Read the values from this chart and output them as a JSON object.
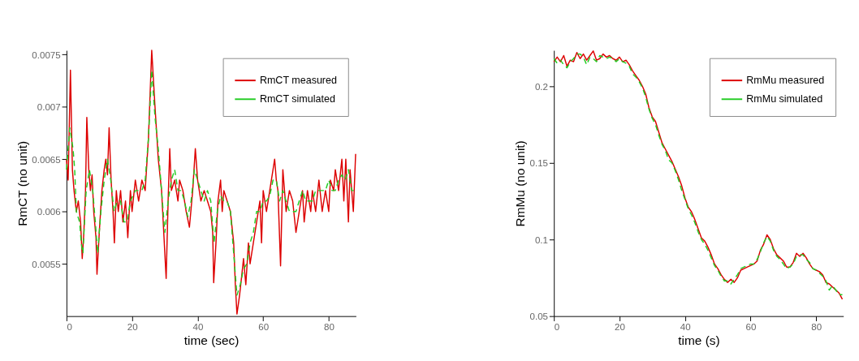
{
  "chart_data": [
    {
      "type": "line",
      "xlabel": "time (sec)",
      "ylabel": "RmCT (no unit)",
      "xlim": [
        0,
        88.3
      ],
      "ylim": [
        0.005,
        0.00754
      ],
      "xticks": [
        0,
        20,
        40,
        60,
        80
      ],
      "yticks": [
        0.0055,
        0.006,
        0.0065,
        0.007,
        0.0075
      ],
      "grid": false,
      "legend": "top right",
      "marker": "none",
      "series": [
        {
          "name": "RmCT measured",
          "color": "#dd0000",
          "line_style": "solid",
          "x": [
            0,
            0.5,
            1.2,
            1.8,
            2.3,
            3,
            3.6,
            4.3,
            4.8,
            5.3,
            5.8,
            6.2,
            6.8,
            7.3,
            7.8,
            8.3,
            9,
            9.3,
            10,
            10.8,
            11.5,
            12,
            12.5,
            13,
            13.6,
            14.2,
            14.6,
            15.2,
            15.8,
            16.5,
            17.2,
            18,
            18.7,
            19.5,
            20,
            21,
            22,
            23,
            24,
            25,
            26,
            27,
            28,
            29,
            29.5,
            30.4,
            31,
            31.5,
            32,
            33,
            34,
            34.5,
            35.5,
            36.5,
            37.5,
            38.5,
            39.3,
            40,
            41,
            42,
            43,
            44,
            44.6,
            44.9,
            45.6,
            46.2,
            47,
            47.5,
            48,
            49,
            50,
            51,
            51.5,
            52,
            52.8,
            53.5,
            54,
            54.7,
            55.5,
            56,
            57,
            58,
            59,
            59.5,
            60,
            61,
            62,
            63,
            63.5,
            64,
            64.5,
            65.3,
            66,
            67,
            68,
            69,
            70,
            71,
            72,
            72.5,
            73.5,
            74.5,
            75,
            76,
            77,
            78,
            79,
            80,
            80.5,
            81.5,
            82,
            83,
            84,
            84.6,
            85.2,
            86,
            86.5,
            87,
            87.5,
            88.2
          ],
          "values": [
            0.0065,
            0.0063,
            0.00735,
            0.0064,
            0.0062,
            0.006,
            0.0061,
            0.0059,
            0.00555,
            0.0058,
            0.0062,
            0.0069,
            0.0064,
            0.0062,
            0.00635,
            0.006,
            0.00575,
            0.0054,
            0.0058,
            0.0062,
            0.0064,
            0.0065,
            0.00635,
            0.0068,
            0.0063,
            0.006,
            0.0057,
            0.0062,
            0.006,
            0.0062,
            0.0059,
            0.0061,
            0.00575,
            0.0062,
            0.006,
            0.0063,
            0.0061,
            0.0063,
            0.0062,
            0.0067,
            0.00754,
            0.007,
            0.0065,
            0.0062,
            0.0059,
            0.00536,
            0.0061,
            0.0066,
            0.0062,
            0.0063,
            0.0061,
            0.0063,
            0.0062,
            0.006,
            0.00585,
            0.0062,
            0.0066,
            0.0063,
            0.0061,
            0.0062,
            0.0061,
            0.006,
            0.0058,
            0.00532,
            0.0057,
            0.0061,
            0.0063,
            0.006,
            0.0062,
            0.0061,
            0.006,
            0.0057,
            0.0053,
            0.00502,
            0.0052,
            0.0054,
            0.00555,
            0.0053,
            0.0057,
            0.0055,
            0.0057,
            0.0059,
            0.0061,
            0.0057,
            0.0062,
            0.006,
            0.0062,
            0.0064,
            0.0065,
            0.0063,
            0.0062,
            0.00548,
            0.0064,
            0.006,
            0.0062,
            0.0061,
            0.0058,
            0.006,
            0.0062,
            0.0059,
            0.0062,
            0.006,
            0.0062,
            0.006,
            0.0063,
            0.006,
            0.0062,
            0.006,
            0.0063,
            0.0062,
            0.0064,
            0.0062,
            0.0065,
            0.0061,
            0.0065,
            0.0059,
            0.0064,
            0.0062,
            0.006,
            0.00655
          ]
        },
        {
          "name": "RmCT simulated",
          "color": "#22cc22",
          "line_style": "dashed",
          "x": [
            0,
            1,
            2,
            2.5,
            3,
            4,
            4.5,
            5,
            6,
            7,
            8,
            8.8,
            9.5,
            10.5,
            11.5,
            12.5,
            13.5,
            14.5,
            15.5,
            16.5,
            17.5,
            18.5,
            19.5,
            21,
            22,
            23,
            24,
            25,
            26,
            27,
            28,
            29,
            30,
            31,
            32,
            33,
            34,
            35,
            36,
            37,
            38,
            39,
            40,
            41,
            42,
            43,
            44,
            45,
            46,
            47,
            48,
            49,
            50,
            51,
            52,
            53,
            54,
            55,
            56,
            57,
            58,
            59,
            60,
            61,
            62,
            63,
            64,
            65,
            66,
            67,
            68,
            69,
            70,
            71,
            72,
            73,
            74,
            75,
            76,
            77,
            78,
            79,
            80,
            81,
            82,
            83,
            84,
            85,
            86,
            87,
            88
          ],
          "values": [
            0.0064,
            0.0068,
            0.0066,
            0.0064,
            0.006,
            0.0059,
            0.0057,
            0.0056,
            0.0062,
            0.0064,
            0.0062,
            0.0059,
            0.0056,
            0.006,
            0.0063,
            0.0065,
            0.0063,
            0.006,
            0.0061,
            0.0061,
            0.0059,
            0.0059,
            0.0061,
            0.0062,
            0.0062,
            0.0062,
            0.0063,
            0.0067,
            0.00735,
            0.0069,
            0.0066,
            0.0062,
            0.0058,
            0.0061,
            0.0063,
            0.0064,
            0.0062,
            0.0062,
            0.0061,
            0.00595,
            0.0061,
            0.0064,
            0.0063,
            0.0062,
            0.0061,
            0.0062,
            0.0061,
            0.0057,
            0.006,
            0.00615,
            0.0061,
            0.0061,
            0.006,
            0.0056,
            0.0052,
            0.0053,
            0.00545,
            0.0055,
            0.0057,
            0.0058,
            0.006,
            0.006,
            0.0061,
            0.0061,
            0.00615,
            0.0063,
            0.0063,
            0.0061,
            0.0062,
            0.0061,
            0.006,
            0.006,
            0.006,
            0.0061,
            0.0062,
            0.0061,
            0.0061,
            0.0061,
            0.0062,
            0.0062,
            0.0062,
            0.0062,
            0.0063,
            0.0062,
            0.0062,
            0.0063,
            0.00635,
            0.0063,
            0.0064,
            0.0062,
            0.0062
          ]
        }
      ]
    },
    {
      "type": "line",
      "xlabel": "time (s)",
      "ylabel": "RmMu (no unit)",
      "xlim": [
        0,
        88.3
      ],
      "ylim": [
        0.05,
        0.2234
      ],
      "xticks": [
        0,
        20,
        40,
        60,
        80
      ],
      "yticks": [
        0.05,
        0.1,
        0.15,
        0.2
      ],
      "grid": false,
      "legend": "top right",
      "marker": "none",
      "series": [
        {
          "name": "RmMu measured",
          "color": "#dd0000",
          "line_style": "solid",
          "x": [
            0,
            1,
            2,
            3,
            4,
            5,
            6,
            7,
            8,
            9,
            10,
            11,
            12,
            13,
            14,
            15,
            16,
            17,
            18,
            19,
            20,
            21,
            22,
            23,
            24,
            25,
            26,
            27,
            28,
            29,
            30,
            31,
            32,
            33,
            34,
            35,
            36,
            37,
            38,
            39,
            40,
            41,
            42,
            43,
            44,
            45,
            46,
            47,
            48,
            49,
            50,
            51,
            52,
            53,
            54,
            55,
            56,
            57,
            58,
            59,
            60,
            61,
            62,
            63,
            64,
            65,
            66,
            67,
            68,
            69,
            70,
            71,
            72,
            73,
            74,
            75,
            76,
            77,
            78,
            79,
            80,
            81,
            82,
            83,
            84,
            85,
            86,
            87,
            88
          ],
          "values": [
            0.216,
            0.219,
            0.216,
            0.22,
            0.213,
            0.217,
            0.216,
            0.222,
            0.218,
            0.221,
            0.217,
            0.22,
            0.223,
            0.217,
            0.218,
            0.221,
            0.219,
            0.22,
            0.218,
            0.217,
            0.219,
            0.216,
            0.217,
            0.214,
            0.21,
            0.207,
            0.204,
            0.2,
            0.195,
            0.186,
            0.18,
            0.177,
            0.17,
            0.163,
            0.159,
            0.155,
            0.151,
            0.146,
            0.141,
            0.135,
            0.127,
            0.121,
            0.118,
            0.113,
            0.107,
            0.101,
            0.099,
            0.095,
            0.09,
            0.084,
            0.081,
            0.077,
            0.074,
            0.072,
            0.074,
            0.072,
            0.075,
            0.08,
            0.081,
            0.082,
            0.083,
            0.084,
            0.086,
            0.093,
            0.097,
            0.103,
            0.1,
            0.094,
            0.09,
            0.088,
            0.086,
            0.082,
            0.082,
            0.085,
            0.091,
            0.089,
            0.091,
            0.088,
            0.084,
            0.081,
            0.08,
            0.079,
            0.077,
            0.072,
            0.071,
            0.069,
            0.067,
            0.065,
            0.061
          ]
        },
        {
          "name": "RmMu simulated",
          "color": "#22cc22",
          "line_style": "dashed",
          "x": [
            0,
            1,
            2,
            3,
            4,
            5,
            6,
            7,
            8,
            9,
            10,
            11,
            12,
            13,
            14,
            15,
            16,
            17,
            18,
            19,
            20,
            21,
            22,
            23,
            24,
            25,
            26,
            27,
            28,
            29,
            30,
            31,
            32,
            33,
            34,
            35,
            36,
            37,
            38,
            39,
            40,
            41,
            42,
            43,
            44,
            45,
            46,
            47,
            48,
            49,
            50,
            51,
            52,
            53,
            54,
            55,
            56,
            57,
            58,
            59,
            60,
            61,
            62,
            63,
            64,
            65,
            66,
            67,
            68,
            69,
            70,
            71,
            72,
            73,
            74,
            75,
            76,
            77,
            78,
            79,
            80,
            81,
            82,
            83,
            84,
            85,
            86,
            87,
            88
          ],
          "values": [
            0.218,
            0.215,
            0.217,
            0.214,
            0.212,
            0.216,
            0.218,
            0.221,
            0.221,
            0.219,
            0.214,
            0.219,
            0.218,
            0.216,
            0.22,
            0.219,
            0.218,
            0.219,
            0.218,
            0.216,
            0.218,
            0.216,
            0.215,
            0.213,
            0.208,
            0.206,
            0.203,
            0.199,
            0.193,
            0.185,
            0.179,
            0.175,
            0.168,
            0.162,
            0.158,
            0.152,
            0.15,
            0.145,
            0.139,
            0.132,
            0.126,
            0.12,
            0.116,
            0.111,
            0.105,
            0.1,
            0.097,
            0.093,
            0.088,
            0.083,
            0.08,
            0.076,
            0.073,
            0.073,
            0.071,
            0.074,
            0.077,
            0.081,
            0.082,
            0.083,
            0.084,
            0.084,
            0.087,
            0.092,
            0.098,
            0.102,
            0.099,
            0.093,
            0.089,
            0.087,
            0.084,
            0.081,
            0.082,
            0.084,
            0.089,
            0.09,
            0.09,
            0.087,
            0.085,
            0.081,
            0.08,
            0.078,
            0.076,
            0.073,
            0.067,
            0.07,
            0.067,
            0.064,
            0.064
          ]
        }
      ]
    }
  ]
}
